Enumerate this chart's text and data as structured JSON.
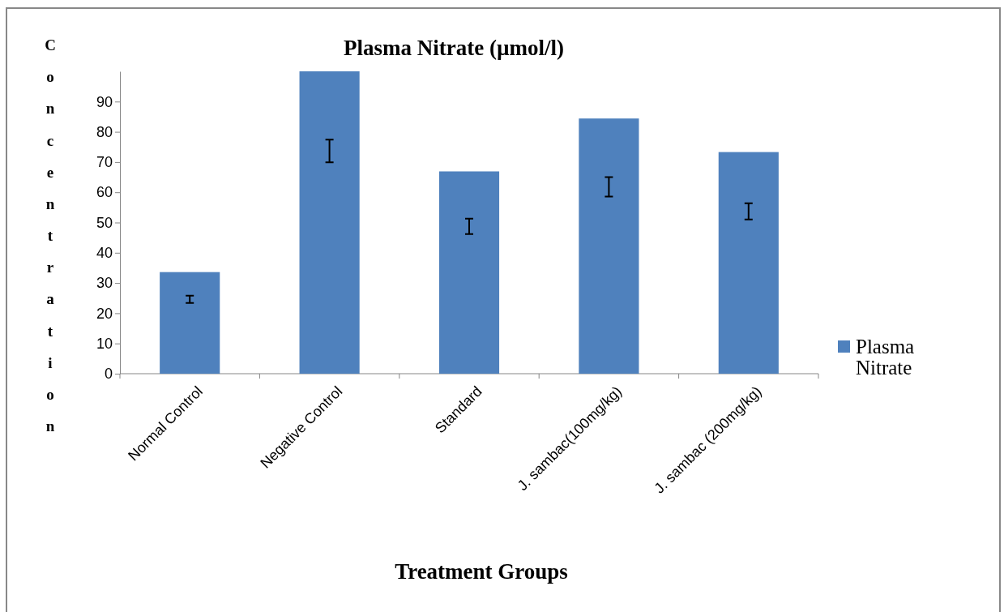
{
  "chart_data": {
    "type": "bar",
    "title": "Plasma Nitrate (µmol/l)",
    "xlabel": "Treatment Groups",
    "ylabel": "Concentration",
    "categories": [
      "Normal Control",
      "Negative Control",
      "Standard",
      "J. sambac(100mg/kg)",
      "J. sambac (200mg/kg)"
    ],
    "series": [
      {
        "name": "Plasma Nitrate",
        "color": "#4f81bd",
        "values": [
          33.6,
          100,
          66.9,
          84.4,
          73.3
        ],
        "errors": [
          [
            23.4,
            25.8
          ],
          [
            69.9,
            77.4
          ],
          [
            46.2,
            51.3
          ],
          [
            58.6,
            65.0
          ],
          [
            51.0,
            56.4
          ]
        ]
      }
    ],
    "ylim": [
      0,
      100
    ],
    "yticks": [
      0,
      10,
      20,
      30,
      40,
      50,
      60,
      70,
      80,
      90
    ],
    "grid": false,
    "legend": "right"
  }
}
